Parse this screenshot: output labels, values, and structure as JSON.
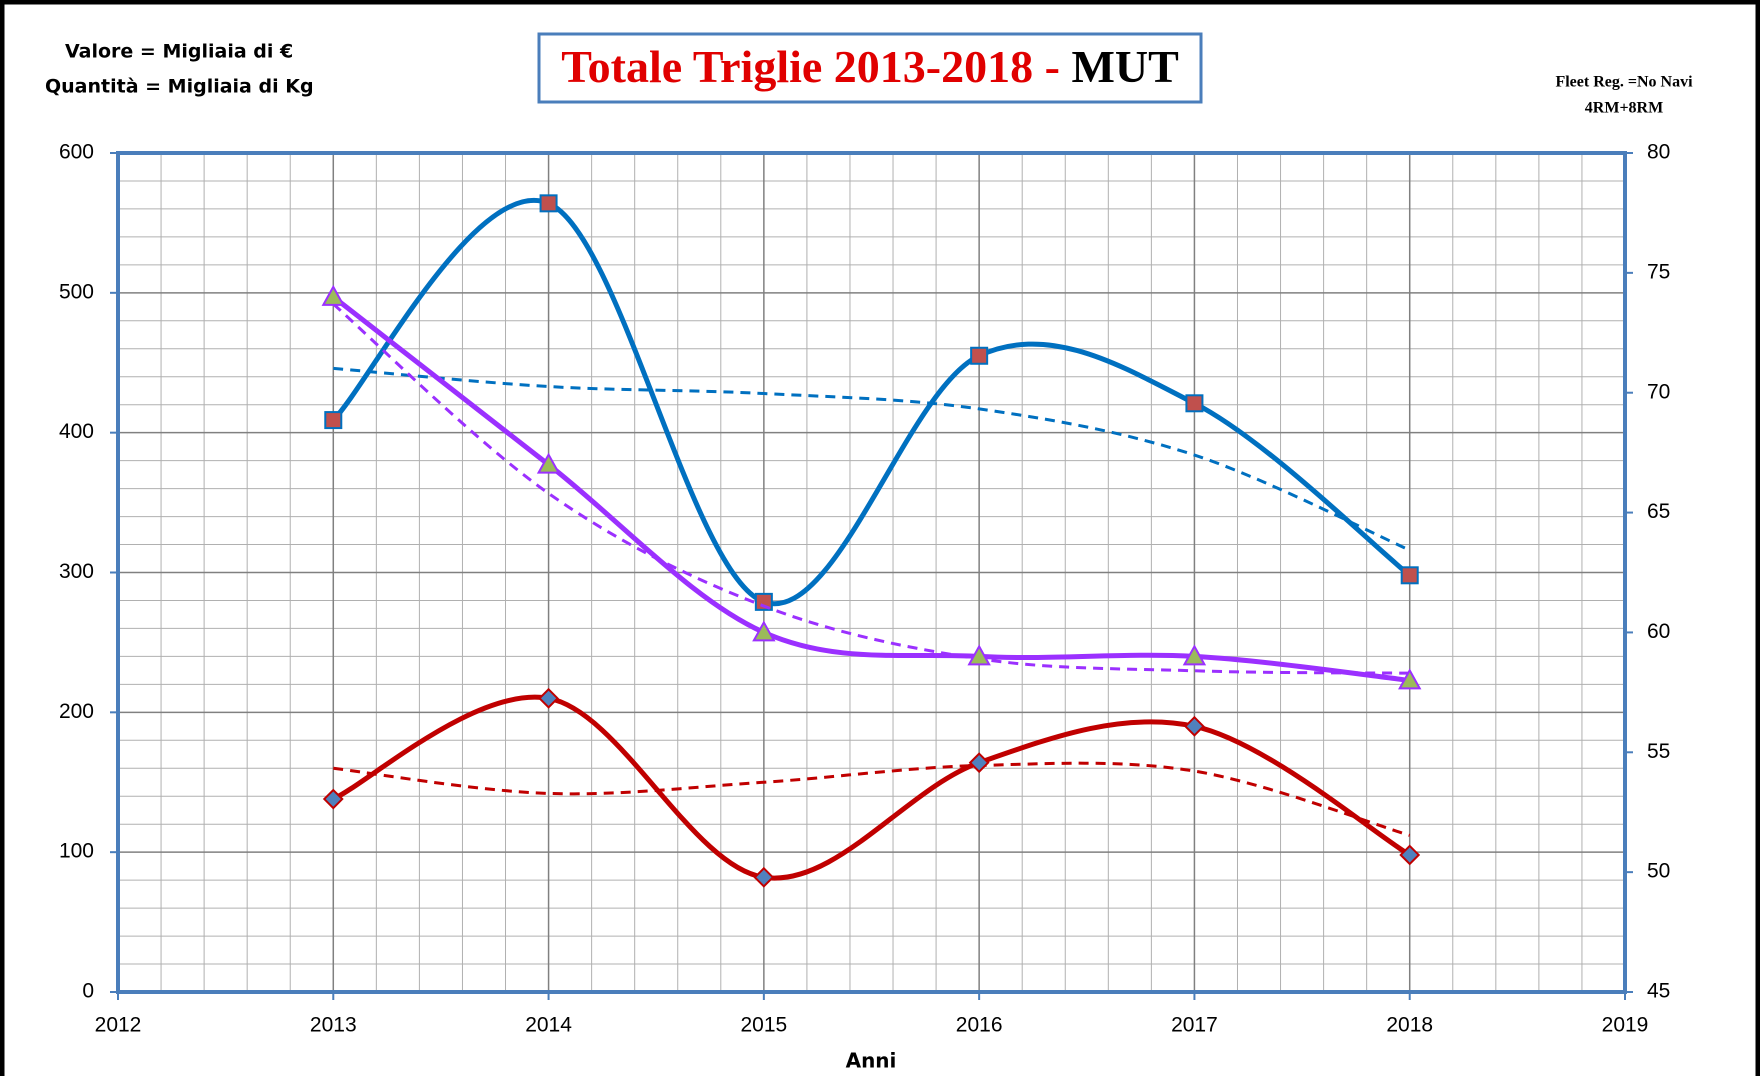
{
  "chart_data": {
    "type": "line",
    "title_parts": [
      "Totale Triglie 2013-2018 - ",
      "MUT"
    ],
    "x_label": "Anni",
    "x": [
      2013,
      2014,
      2015,
      2016,
      2017,
      2018
    ],
    "series": [
      {
        "name": "Valore = Migliaia di €",
        "color": "#0070c0",
        "marker": "square",
        "marker_fill": "#c0504d",
        "values": [
          409,
          564,
          279,
          455,
          421,
          298
        ],
        "trend": [
          446,
          433,
          428,
          417,
          384,
          316
        ]
      },
      {
        "name": "Quantità = Migliaia di Kg",
        "color": "#c00000",
        "marker": "diamond",
        "marker_fill": "#4f81bd",
        "values": [
          138,
          210,
          82,
          164,
          190,
          98
        ],
        "trend": [
          160,
          142,
          150,
          162,
          158,
          112
        ]
      },
      {
        "name_lines": [
          "Fleet Reg. =No Navi",
          "4RM+8RM"
        ],
        "color": "#9b30ff",
        "marker": "triangle",
        "marker_fill": "#9bbb59",
        "axis": "y2",
        "values": [
          74,
          67,
          60,
          59,
          59,
          58
        ],
        "trend": [
          73.7,
          65.8,
          61.1,
          58.9,
          58.4,
          58.3
        ]
      }
    ],
    "xlim": [
      2012,
      2019
    ],
    "xticks": [
      2012,
      2013,
      2014,
      2015,
      2016,
      2017,
      2018,
      2019
    ],
    "ylim": [
      0,
      600
    ],
    "yticks": [
      0,
      100,
      200,
      300,
      400,
      500,
      600
    ],
    "y2lim": [
      45,
      80
    ],
    "y2ticks": [
      45,
      50,
      55,
      60,
      65,
      70,
      75,
      80
    ],
    "grid": true
  }
}
